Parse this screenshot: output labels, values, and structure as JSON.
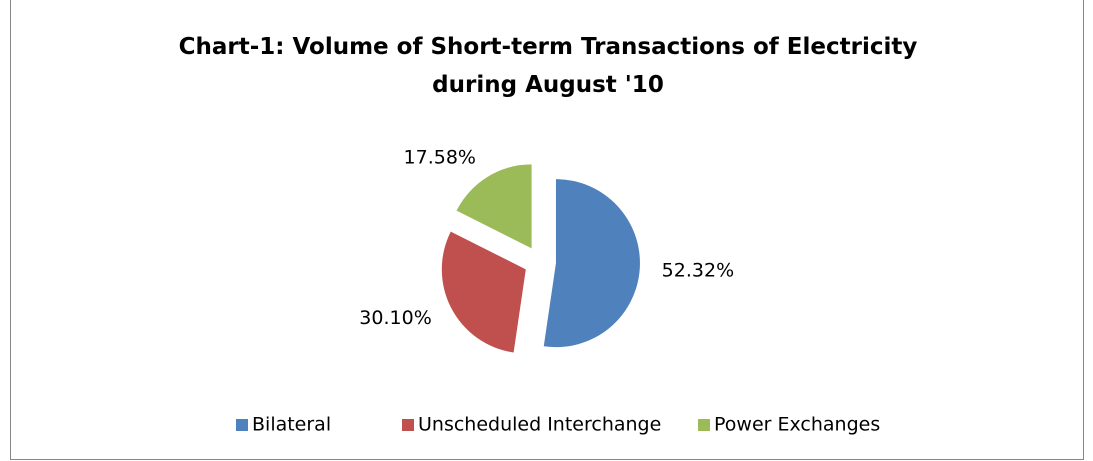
{
  "chart_data": {
    "type": "pie",
    "title": "Chart-1: Volume of Short-term Transactions of Electricity during August '10",
    "categories": [
      "Bilateral",
      "Unscheduled Interchange",
      "Power Exchanges"
    ],
    "values": [
      52.32,
      30.1,
      17.58
    ],
    "value_labels": [
      "52.32%",
      "30.10%",
      "17.58%"
    ],
    "colors": [
      "#4f81bd",
      "#c0504d",
      "#9bbb59"
    ],
    "legend": "bottom"
  }
}
